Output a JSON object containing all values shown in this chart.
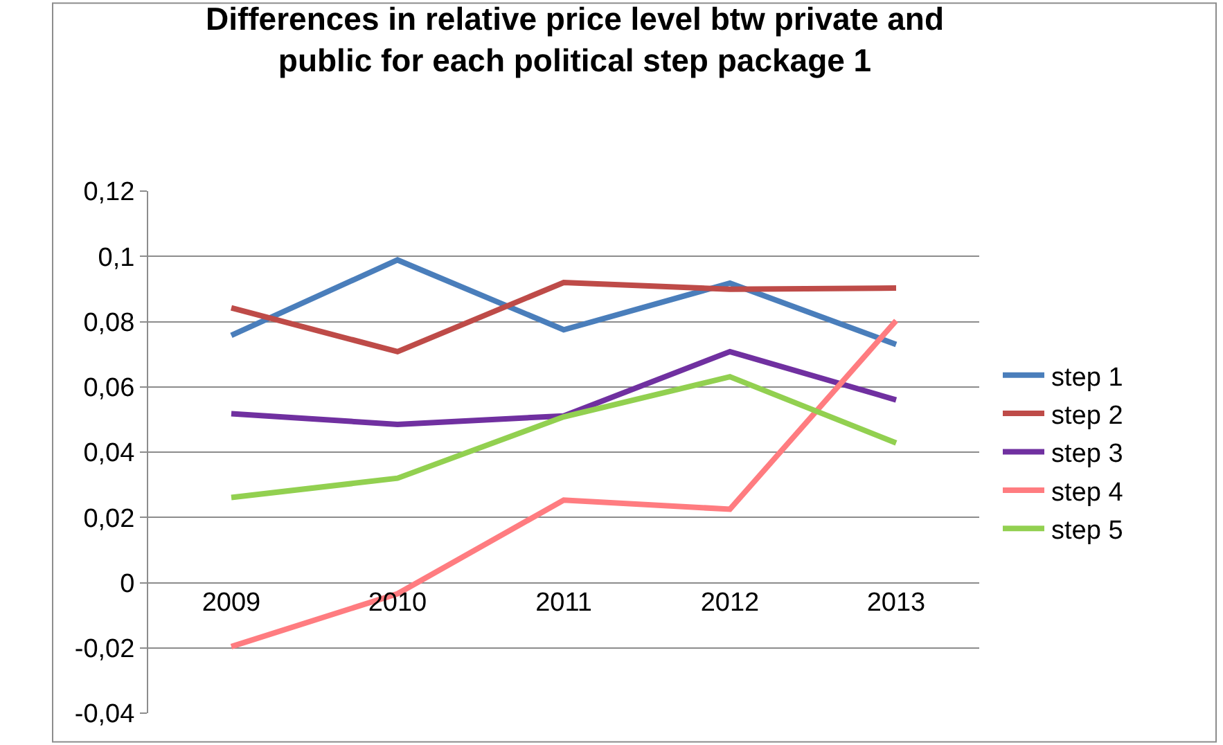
{
  "chart_data": {
    "type": "line",
    "title": "Differences in relative price level btw private and public for each political step package 1",
    "categories": [
      "2009",
      "2010",
      "2011",
      "2012",
      "2013"
    ],
    "series": [
      {
        "name": "step 1",
        "color": "#4a7ebb",
        "values": [
          0.0758,
          0.0989,
          0.0775,
          0.0918,
          0.073
        ]
      },
      {
        "name": "step 2",
        "color": "#be4b48",
        "values": [
          0.0842,
          0.0708,
          0.092,
          0.0899,
          0.0903
        ]
      },
      {
        "name": "step 3",
        "color": "#7030a0",
        "values": [
          0.0518,
          0.0485,
          0.0511,
          0.0708,
          0.056
        ]
      },
      {
        "name": "step 4",
        "color": "#ff7c80",
        "values": [
          -0.0196,
          -0.0034,
          0.0253,
          0.0225,
          0.0803
        ]
      },
      {
        "name": "step 5",
        "color": "#92d050",
        "values": [
          0.0261,
          0.032,
          0.0508,
          0.0631,
          0.0428
        ]
      }
    ],
    "ylim": [
      -0.04,
      0.12
    ],
    "yticks": [
      {
        "value": -0.04,
        "label": "-0,04"
      },
      {
        "value": -0.02,
        "label": "-0,02"
      },
      0,
      {
        "value": 0.02,
        "label": "0,02"
      },
      {
        "value": 0.04,
        "label": "0,04"
      },
      {
        "value": 0.06,
        "label": "0,06"
      },
      {
        "value": 0.08,
        "label": "0,08"
      },
      {
        "value": 0.1,
        "label": "0,1"
      },
      {
        "value": 0.12,
        "label": "0,12"
      }
    ],
    "grid": "y",
    "legend": "right",
    "marker": "none",
    "line_style": "solid"
  }
}
